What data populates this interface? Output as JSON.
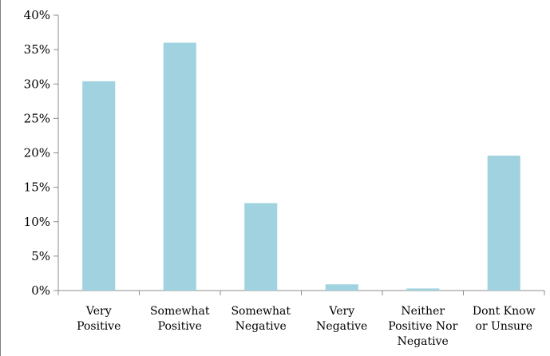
{
  "chart_data": {
    "type": "bar",
    "categories": [
      [
        "Very",
        "Positive"
      ],
      [
        "Somewhat",
        "Positive"
      ],
      [
        "Somewhat",
        "Negative"
      ],
      [
        "Very",
        "Negative"
      ],
      [
        "Neither",
        "Positive Nor",
        "Negative"
      ],
      [
        "Dont Know",
        "or Unsure"
      ]
    ],
    "values": [
      30.4,
      36.0,
      12.7,
      0.9,
      0.3,
      19.6
    ],
    "y_ticks": [
      "0%",
      "5%",
      "10%",
      "15%",
      "20%",
      "25%",
      "30%",
      "35%",
      "40%"
    ],
    "ylim": [
      0,
      40
    ],
    "grid": false,
    "bar_color": "#a0d3df",
    "axis_color": "#8c8c8c"
  }
}
